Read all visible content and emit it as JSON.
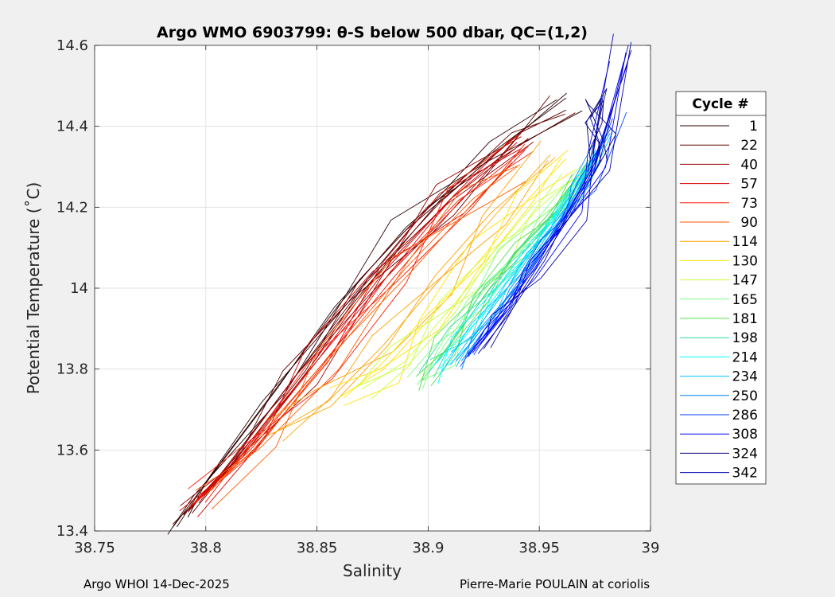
{
  "chart_data": {
    "type": "line",
    "title": "Argo WMO 6903799: θ-S below 500 dbar,  QC=(1,2)",
    "xlabel": "Salinity",
    "ylabel": "Potential Temperature (˚C)",
    "xlim": [
      38.75,
      39
    ],
    "ylim": [
      13.4,
      14.6
    ],
    "x_ticks": [
      38.75,
      38.8,
      38.85,
      38.9,
      38.95,
      39
    ],
    "x_tick_labels": [
      "38.75",
      "38.8",
      "38.85",
      "38.9",
      "38.95",
      "39"
    ],
    "y_ticks": [
      13.4,
      13.6,
      13.8,
      14,
      14.2,
      14.4,
      14.6
    ],
    "y_tick_labels": [
      "13.4",
      "13.6",
      "13.8",
      "14",
      "14.2",
      "14.4",
      "14.6"
    ],
    "grid": true,
    "legend_title": "Cycle #",
    "legend_position": "right-outside",
    "series": [
      {
        "name": "1",
        "color": "#2a0000",
        "x": [
          38.787,
          38.8,
          38.83,
          38.86,
          38.89,
          38.93,
          38.962
        ],
        "y": [
          13.41,
          13.52,
          13.74,
          13.96,
          14.15,
          14.34,
          14.47
        ]
      },
      {
        "name": "22",
        "color": "#600000",
        "x": [
          38.79,
          38.81,
          38.84,
          38.87,
          38.905,
          38.94,
          38.962
        ],
        "y": [
          13.44,
          13.56,
          13.78,
          14.0,
          14.21,
          14.38,
          14.44
        ]
      },
      {
        "name": "40",
        "color": "#9c0000",
        "x": [
          38.792,
          38.815,
          38.845,
          38.875,
          38.91,
          38.945
        ],
        "y": [
          13.45,
          13.58,
          13.79,
          14.02,
          14.22,
          14.37
        ]
      },
      {
        "name": "57",
        "color": "#d80000",
        "x": [
          38.793,
          38.82,
          38.85,
          38.88,
          38.91,
          38.94
        ],
        "y": [
          13.46,
          13.61,
          13.82,
          14.04,
          14.22,
          14.36
        ]
      },
      {
        "name": "73",
        "color": "#ff1800",
        "x": [
          38.795,
          38.82,
          38.852,
          38.885,
          38.915,
          38.945
        ],
        "y": [
          13.47,
          13.6,
          13.81,
          14.03,
          14.22,
          14.35
        ]
      },
      {
        "name": "90",
        "color": "#ff5a00",
        "x": [
          38.8,
          38.825,
          38.855,
          38.89,
          38.92,
          38.94
        ],
        "y": [
          13.49,
          13.62,
          13.82,
          14.05,
          14.22,
          14.3
        ]
      },
      {
        "name": "114",
        "color": "#ffa200",
        "x": [
          38.83,
          38.855,
          38.88,
          38.905,
          38.93,
          38.955
        ],
        "y": [
          13.64,
          13.72,
          13.86,
          14.02,
          14.18,
          14.33
        ]
      },
      {
        "name": "130",
        "color": "#ffe200",
        "x": [
          38.86,
          38.88,
          38.9,
          38.925,
          38.945,
          38.962
        ],
        "y": [
          13.73,
          13.8,
          13.92,
          14.08,
          14.22,
          14.32
        ]
      },
      {
        "name": "147",
        "color": "#c8ff36",
        "x": [
          38.87,
          38.89,
          38.91,
          38.93,
          38.95,
          38.965
        ],
        "y": [
          13.75,
          13.82,
          13.95,
          14.08,
          14.2,
          14.27
        ]
      },
      {
        "name": "165",
        "color": "#7cff82",
        "x": [
          38.895,
          38.905,
          38.92,
          38.938,
          38.955,
          38.968
        ],
        "y": [
          13.76,
          13.84,
          13.96,
          14.08,
          14.18,
          14.28
        ]
      },
      {
        "name": "181",
        "color": "#50e050",
        "x": [
          38.897,
          38.91,
          38.925,
          38.94,
          38.958,
          38.97
        ],
        "y": [
          13.77,
          13.86,
          13.98,
          14.09,
          14.19,
          14.3
        ]
      },
      {
        "name": "198",
        "color": "#30d8a0",
        "x": [
          38.9,
          38.912,
          38.928,
          38.945,
          38.96,
          38.972
        ],
        "y": [
          13.79,
          13.88,
          14.0,
          14.1,
          14.2,
          14.31
        ]
      },
      {
        "name": "214",
        "color": "#00ffff",
        "x": [
          38.905,
          38.918,
          38.933,
          38.948,
          38.962,
          38.975
        ],
        "y": [
          13.8,
          13.89,
          14.0,
          14.11,
          14.21,
          14.33
        ]
      },
      {
        "name": "234",
        "color": "#00c0ff",
        "x": [
          38.91,
          38.922,
          38.937,
          38.951,
          38.965,
          38.977
        ],
        "y": [
          13.81,
          13.9,
          14.01,
          14.12,
          14.22,
          14.35
        ]
      },
      {
        "name": "250",
        "color": "#0080ff",
        "x": [
          38.915,
          38.927,
          38.941,
          38.955,
          38.968,
          38.98
        ],
        "y": [
          13.82,
          13.91,
          14.02,
          14.13,
          14.24,
          14.38
        ]
      },
      {
        "name": "286",
        "color": "#0040ff",
        "x": [
          38.918,
          38.93,
          38.944,
          38.958,
          38.972,
          38.983
        ],
        "y": [
          13.83,
          13.92,
          14.03,
          14.15,
          14.27,
          14.42
        ]
      },
      {
        "name": "308",
        "color": "#0000ff",
        "x": [
          38.92,
          38.933,
          38.947,
          38.962,
          38.975,
          38.988
        ],
        "y": [
          13.84,
          13.93,
          14.05,
          14.17,
          14.3,
          14.56
        ]
      },
      {
        "name": "324",
        "color": "#000080",
        "x": [
          38.975,
          38.977,
          38.973,
          38.978,
          38.976,
          38.974
        ],
        "y": [
          14.3,
          14.36,
          14.42,
          14.47,
          14.4,
          14.33
        ]
      },
      {
        "name": "342",
        "color": "#0000b0",
        "x": [
          38.925,
          38.936,
          38.95,
          38.964,
          38.977,
          38.99
        ],
        "y": [
          13.85,
          13.94,
          14.06,
          14.18,
          14.31,
          14.6
        ]
      }
    ]
  },
  "footer": {
    "left": "Argo WHOI 14-Dec-2025",
    "right": "Pierre-Marie POULAIN at coriolis"
  }
}
